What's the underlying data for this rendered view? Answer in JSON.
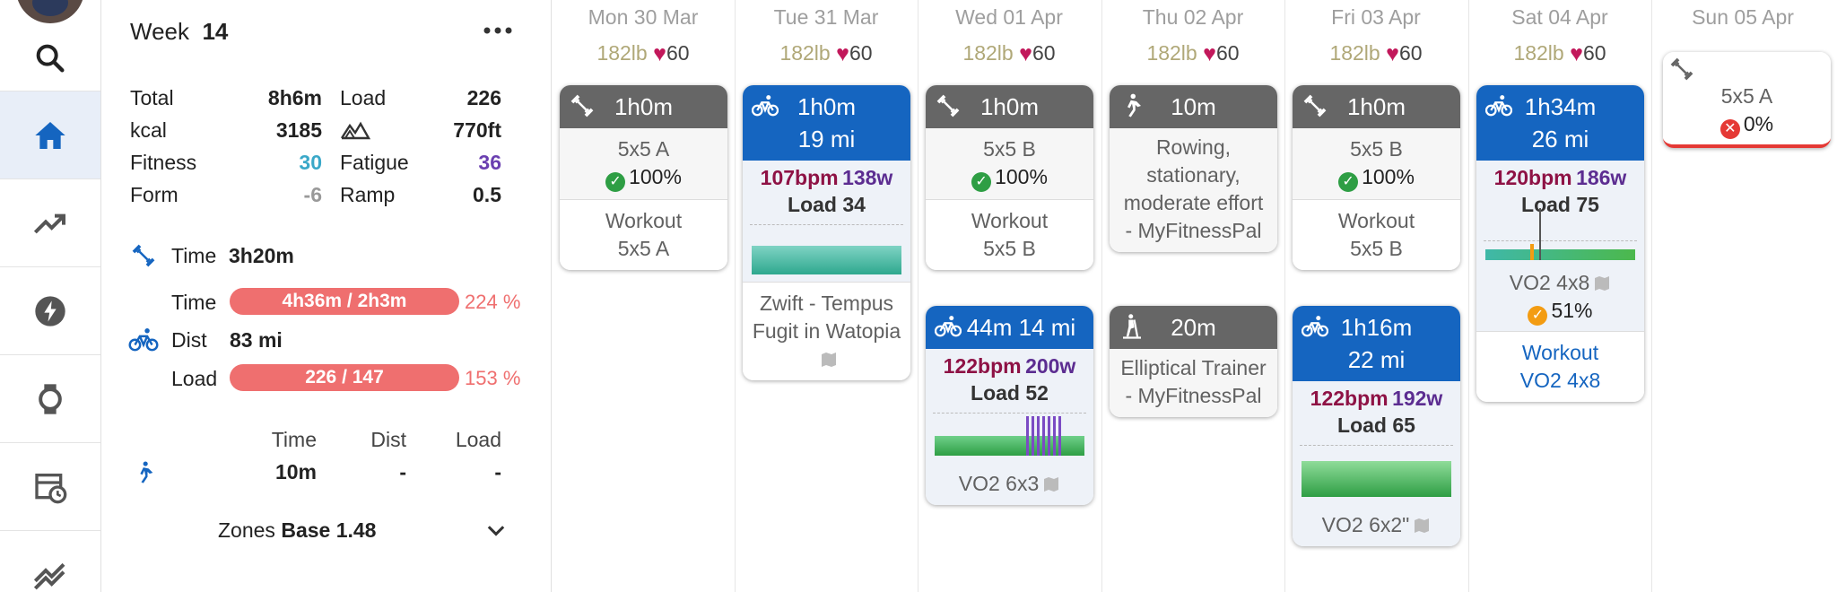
{
  "week": {
    "label": "Week",
    "number": "14",
    "menu_icon": "more-horizontal-icon"
  },
  "stats": {
    "total_label": "Total",
    "total_value": "8h6m",
    "load_label": "Load",
    "load_value": "226",
    "kcal_label": "kcal",
    "kcal_value": "3185",
    "elevation_value": "770ft",
    "fitness_label": "Fitness",
    "fitness_value": "30",
    "fatigue_label": "Fatigue",
    "fatigue_value": "36",
    "form_label": "Form",
    "form_value": "-6",
    "ramp_label": "Ramp",
    "ramp_value": "0.5"
  },
  "strength": {
    "time_label": "Time",
    "time_value": "3h20m"
  },
  "ride": {
    "time_label": "Time",
    "time_bar": "4h36m / 2h3m",
    "time_pct": "224 %",
    "time_progress": 1.0,
    "dist_label": "Dist",
    "dist_value": "83 mi",
    "load_label": "Load",
    "load_bar": "226 / 147",
    "load_pct": "153 %",
    "load_progress": 1.0
  },
  "walk_table": {
    "headers": [
      "Time",
      "Dist",
      "Load"
    ],
    "values": [
      "10m",
      "-",
      "-"
    ]
  },
  "zones": {
    "label": "Zones",
    "value": "Base 1.48"
  },
  "colors": {
    "ride_blue": "#1565c0",
    "strength_gray": "#666666",
    "over_target": "#ef6f6f",
    "fitness": "#3aa8c8",
    "fatigue": "#6a3fb0"
  },
  "days": [
    {
      "name": "Mon 30 Mar",
      "weight": "182lb",
      "hr": "60"
    },
    {
      "name": "Tue 31 Mar",
      "weight": "182lb",
      "hr": "60"
    },
    {
      "name": "Wed 01 Apr",
      "weight": "182lb",
      "hr": "60"
    },
    {
      "name": "Thu 02 Apr",
      "weight": "182lb",
      "hr": "60"
    },
    {
      "name": "Fri 03 Apr",
      "weight": "182lb",
      "hr": "60"
    },
    {
      "name": "Sat 04 Apr",
      "weight": "182lb",
      "hr": "60"
    },
    {
      "name": "Sun 05 Apr",
      "weight": "",
      "hr": ""
    }
  ],
  "cards": {
    "mon1": {
      "head": "1h0m",
      "title": "5x5 A",
      "pct": "100%",
      "sub1": "Workout",
      "sub2": "5x5 A"
    },
    "tue1": {
      "head1": "1h0m",
      "head2": "19 mi",
      "bpm": "107bpm",
      "watts": "138w",
      "load": "Load 34",
      "name": "Zwift - Tempus Fugit in Watopia"
    },
    "wed1": {
      "head": "1h0m",
      "title": "5x5 B",
      "pct": "100%",
      "sub1": "Workout",
      "sub2": "5x5 B"
    },
    "wed2": {
      "head": "44m 14 mi",
      "bpm": "122bpm",
      "watts": "200w",
      "load": "Load 52",
      "name": "VO2 6x3"
    },
    "thu1": {
      "head": "10m",
      "name": "Rowing, stationary, moderate effort - MyFitnessPal"
    },
    "thu2": {
      "head": "20m",
      "name": "Elliptical Trainer - MyFitnessPal"
    },
    "fri1": {
      "head": "1h0m",
      "title": "5x5 B",
      "pct": "100%",
      "sub1": "Workout",
      "sub2": "5x5 B"
    },
    "fri2": {
      "head1": "1h16m",
      "head2": "22 mi",
      "bpm": "122bpm",
      "watts": "192w",
      "load": "Load 65",
      "name": "VO2 6x2\""
    },
    "sat1": {
      "head1": "1h34m",
      "head2": "26 mi",
      "bpm": "120bpm",
      "watts": "186w",
      "load": "Load 75",
      "name": "VO2 4x8",
      "pct": "51%",
      "sub1": "Workout",
      "sub2": "VO2 4x8"
    },
    "sun1": {
      "title": "5x5 A",
      "pct": "0%"
    }
  }
}
